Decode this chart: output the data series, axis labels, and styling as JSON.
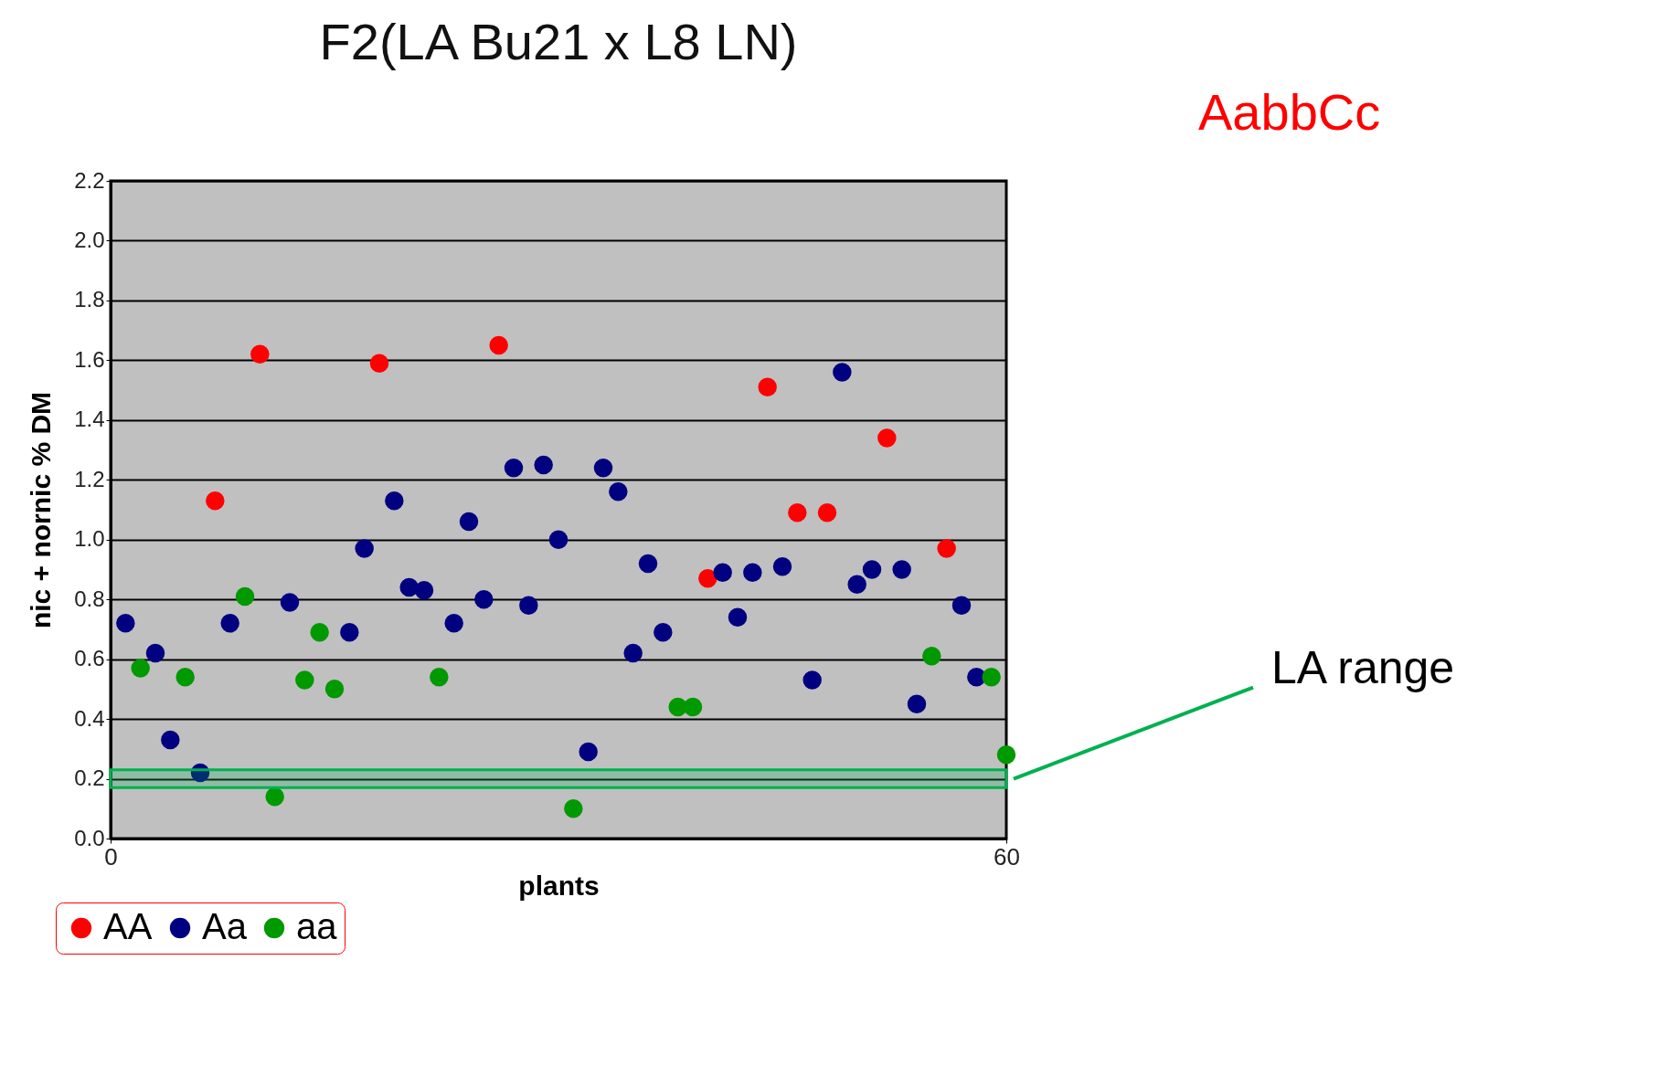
{
  "chart_data": {
    "type": "scatter",
    "title": "F2(LA Bu21 x L8 LN)",
    "xlabel": "plants",
    "ylabel": "nic + nornic % DM",
    "xlim": [
      0,
      60
    ],
    "xticks": [
      0,
      60
    ],
    "ylim": [
      0,
      2.2
    ],
    "yticks": [
      {
        "value": 0,
        "label": "0.0"
      },
      {
        "value": 0.2,
        "label": "0.2"
      },
      {
        "value": 0.4,
        "label": "0.4"
      },
      {
        "value": 0.6,
        "label": "0.6"
      },
      {
        "value": 0.8,
        "label": "0.8"
      },
      {
        "value": 1.0,
        "label": "1.0"
      },
      {
        "value": 1.2,
        "label": "1.2"
      },
      {
        "value": 1.4,
        "label": "1.4"
      },
      {
        "value": 1.6,
        "label": "1.6"
      },
      {
        "value": 1.8,
        "label": "1.8"
      },
      {
        "value": 2.0,
        "label": "2.0"
      },
      {
        "value": 2.2,
        "label": "2.2"
      }
    ],
    "grid": "y",
    "legend": "bottom left",
    "marker": "circle",
    "series": [
      {
        "name": "AA",
        "color": "#ff0000",
        "x": [
          7,
          10,
          18,
          26,
          40,
          44,
          46,
          48,
          52,
          56
        ],
        "values": [
          1.13,
          1.62,
          1.59,
          1.65,
          0.87,
          1.51,
          1.09,
          1.09,
          1.34,
          0.97
        ]
      },
      {
        "name": "Aa",
        "color": "#000080",
        "x": [
          1,
          3,
          4,
          6,
          8,
          12,
          16,
          17,
          19,
          20,
          21,
          23,
          24,
          25,
          27,
          28,
          29,
          30,
          32,
          33,
          34,
          35,
          36,
          37,
          41,
          42,
          43,
          45,
          47,
          49,
          50,
          51,
          53,
          54,
          57,
          58
        ],
        "values": [
          0.72,
          0.62,
          0.33,
          0.22,
          0.72,
          0.79,
          0.69,
          0.97,
          1.13,
          0.84,
          0.83,
          0.72,
          1.06,
          0.8,
          1.24,
          0.78,
          1.25,
          1.0,
          0.29,
          1.24,
          1.16,
          0.62,
          0.92,
          0.69,
          0.89,
          0.74,
          0.89,
          0.91,
          0.53,
          1.56,
          0.85,
          0.9,
          0.9,
          0.45,
          0.78,
          0.54
        ]
      },
      {
        "name": "aa",
        "color": "#009900",
        "x": [
          2,
          5,
          9,
          11,
          13,
          14,
          15,
          22,
          31,
          38,
          39,
          55,
          59,
          60
        ],
        "values": [
          0.57,
          0.54,
          0.81,
          0.14,
          0.53,
          0.69,
          0.5,
          0.54,
          0.1,
          0.44,
          0.44,
          0.61,
          0.54,
          0.28
        ]
      }
    ],
    "bands": [
      {
        "axis": "y",
        "from": 0.17,
        "to": 0.23,
        "label": "LA range",
        "color": "#00b050"
      }
    ],
    "annotations": [
      "AabbCc"
    ]
  }
}
